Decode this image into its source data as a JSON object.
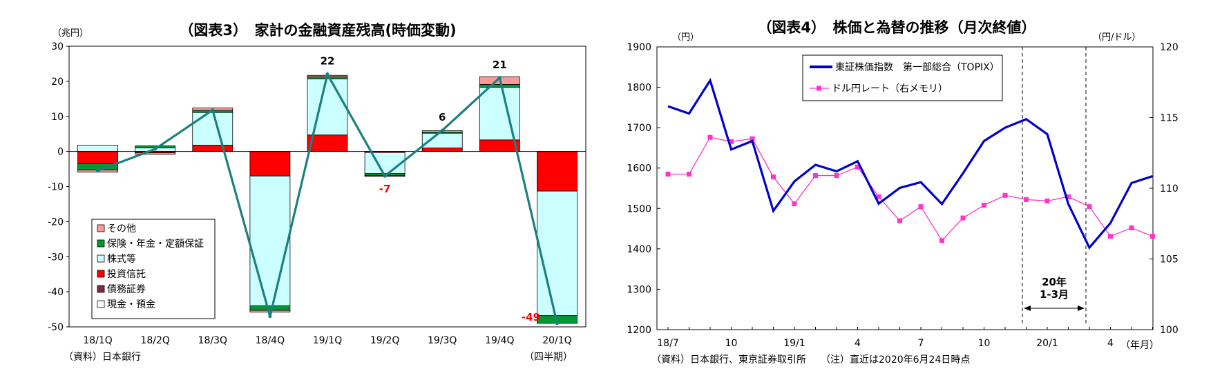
{
  "chart_data": [
    {
      "type": "bar",
      "title": "（図表3）　家計の金融資産残高(時価変動)",
      "ylabel": "（兆円）",
      "xlabel": "（四半期）",
      "source": "（資料）日本銀行",
      "ylim": [
        -50,
        30
      ],
      "yticks": [
        "30",
        "20",
        "10",
        "0",
        "-10",
        "-20",
        "-30",
        "-40",
        "-50"
      ],
      "categories": [
        "18/1Q",
        "18/2Q",
        "18/3Q",
        "18/4Q",
        "19/1Q",
        "19/2Q",
        "19/3Q",
        "19/4Q",
        "20/1Q"
      ],
      "series": [
        {
          "name": "現金・預金",
          "color": "#ffffff",
          "values": [
            0,
            0,
            0,
            0,
            0,
            0,
            0,
            0,
            0
          ]
        },
        {
          "name": "債務証券",
          "color": "#7b2a4a",
          "values": [
            0,
            0,
            0,
            0,
            0,
            0,
            0,
            0,
            0
          ]
        },
        {
          "name": "投資信託",
          "color": "#ff0000",
          "values": [
            -3.5,
            -0.4,
            1.8,
            -7,
            4.7,
            -0.3,
            1.0,
            3.3,
            -11.3
          ]
        },
        {
          "name": "株式等",
          "color": "#ccffff",
          "values": [
            1.8,
            1.0,
            9.3,
            -37,
            16.0,
            -6.0,
            4.2,
            15.0,
            -35.5
          ]
        },
        {
          "name": "保険・年金・定額保証",
          "color": "#009933",
          "values": [
            -1.8,
            0.6,
            0.6,
            -1.3,
            0.6,
            -0.6,
            0.3,
            0.8,
            -2.2
          ]
        },
        {
          "name": "その他",
          "color": "#ff9999",
          "values": [
            -0.6,
            -0.4,
            0.7,
            -0.5,
            0.4,
            -0.2,
            0.4,
            2.2,
            0
          ]
        }
      ],
      "total": [
        -5.5,
        0.7,
        11.8,
        -47,
        22,
        -7,
        6,
        21,
        -49
      ],
      "total_labels": [
        {
          "index": 4,
          "text": "22",
          "color": "#000000"
        },
        {
          "index": 5,
          "text": "-7",
          "color": "#ff0000"
        },
        {
          "index": 6,
          "text": "6",
          "color": "#000000"
        },
        {
          "index": 7,
          "text": "21",
          "color": "#000000"
        },
        {
          "index": 8,
          "text": "-49",
          "color": "#ff0000"
        }
      ],
      "line_color": "#1a8080",
      "legend_position": "bottom-left",
      "legend_order": [
        "その他",
        "保険・年金・定額保証",
        "株式等",
        "投資信託",
        "債務証券",
        "現金・預金"
      ]
    },
    {
      "type": "line",
      "title": "（図表4）　株価と為替の推移（月次終値）",
      "ylabel_left": "（円）",
      "ylabel_right": "（円/ドル）",
      "xlabel": "（年月）",
      "source": "（資料）日本銀行、東京証券取引所　　（注）直近は2020年6月24日時点",
      "ylim_left": [
        1200,
        1900
      ],
      "ylim_right": [
        100,
        120
      ],
      "yticks_left": [
        "1900",
        "1800",
        "1700",
        "1600",
        "1500",
        "1400",
        "1300",
        "1200"
      ],
      "yticks_right": [
        "120",
        "115",
        "110",
        "105",
        "100"
      ],
      "x": [
        "18/7",
        "18/8",
        "18/9",
        "18/10",
        "18/11",
        "18/12",
        "19/1",
        "19/2",
        "19/3",
        "19/4",
        "19/5",
        "19/6",
        "19/7",
        "19/8",
        "19/9",
        "19/10",
        "19/11",
        "19/12",
        "20/1",
        "20/2",
        "20/3",
        "20/4",
        "20/5",
        "20/6"
      ],
      "xtick_labels": [
        "18/7",
        "10",
        "19/1",
        "4",
        "7",
        "10",
        "20/1",
        "4"
      ],
      "series": [
        {
          "name": "東証株価指数　第一部総合（TOPIX）",
          "axis": "left",
          "color": "#0000cc",
          "values": [
            1753,
            1735,
            1817,
            1646,
            1667,
            1494,
            1567,
            1608,
            1592,
            1617,
            1512,
            1551,
            1565,
            1511,
            1587,
            1667,
            1700,
            1721,
            1684,
            1511,
            1403,
            1464,
            1563,
            1580
          ]
        },
        {
          "name": "ドル円レート（右メモリ）",
          "axis": "right",
          "color": "#ff33cc",
          "values": [
            111.0,
            111.0,
            113.6,
            113.3,
            113.5,
            110.8,
            108.9,
            110.9,
            110.9,
            111.5,
            109.4,
            107.7,
            108.7,
            106.3,
            107.9,
            108.8,
            109.5,
            109.2,
            109.1,
            109.4,
            108.7,
            106.6,
            107.2,
            106.6
          ]
        }
      ],
      "annotation": {
        "text1": "20年",
        "text2": "1-3月"
      },
      "legend_position": "top"
    }
  ]
}
